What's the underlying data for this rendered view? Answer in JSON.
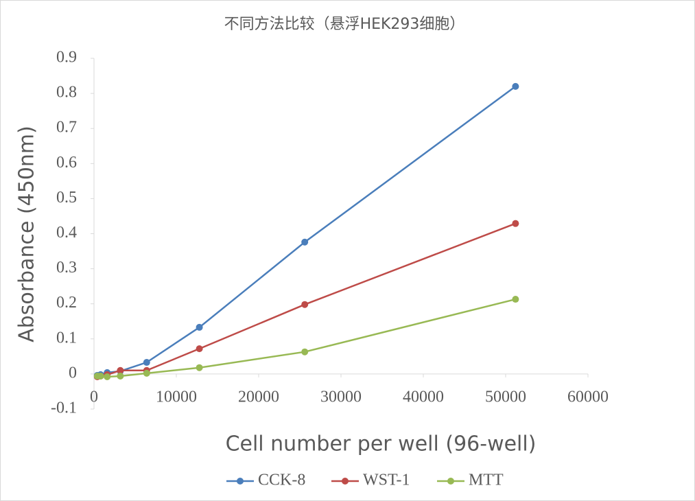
{
  "chart_data": {
    "type": "line",
    "title": "不同方法比较（悬浮HEK293细胞）",
    "xlabel": "Cell number per well (96-well)",
    "ylabel": "Absorbance (450nm)",
    "x": [
      400,
      800,
      1600,
      3200,
      6400,
      12800,
      25600,
      51200
    ],
    "series": [
      {
        "name": "CCK-8",
        "color": "#4a7ebb",
        "values": [
          -0.004,
          -0.002,
          0.004,
          0.008,
          0.033,
          0.133,
          0.376,
          0.82
        ]
      },
      {
        "name": "WST-1",
        "color": "#be4b48",
        "values": [
          -0.008,
          -0.006,
          -0.002,
          0.01,
          0.01,
          0.072,
          0.198,
          0.429
        ]
      },
      {
        "name": "MTT",
        "color": "#98b954",
        "values": [
          -0.006,
          -0.006,
          -0.008,
          -0.006,
          0.002,
          0.018,
          0.063,
          0.213
        ]
      }
    ],
    "xlim": [
      0,
      60000
    ],
    "xticks": [
      0,
      10000,
      20000,
      30000,
      40000,
      50000,
      60000
    ],
    "ylim": [
      -0.1,
      0.9
    ],
    "yticks": [
      -0.1,
      0,
      0.1,
      0.2,
      0.3,
      0.4,
      0.5,
      0.6,
      0.7,
      0.8,
      0.9
    ],
    "legend": "bottom"
  }
}
